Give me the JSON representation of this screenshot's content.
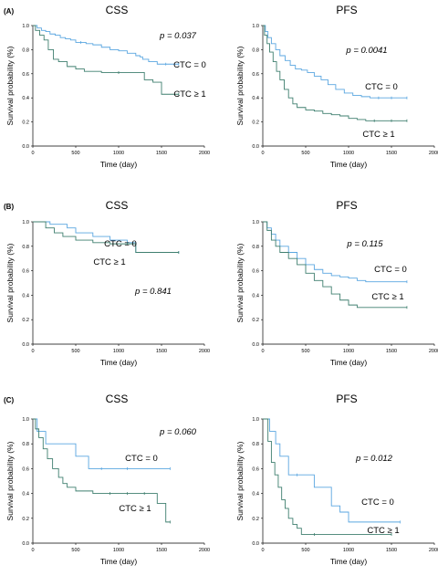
{
  "chart_data": [
    {
      "type": "line",
      "row_label": "(A)",
      "title": "CSS",
      "xlabel": "Time (day)",
      "ylabel": "Survival probability (%)",
      "xlim": [
        0,
        2000
      ],
      "ylim": [
        0,
        1
      ],
      "xticks": [
        "0",
        "500",
        "1000",
        "1500",
        "2000"
      ],
      "yticks": [
        "0.0",
        "0.2",
        "0.4",
        "0.6",
        "0.8",
        "1.0"
      ],
      "p_value": "p = 0.037",
      "series": [
        {
          "name": "CTC = 0",
          "color": "#5aa6e0",
          "x": [
            0,
            50,
            100,
            150,
            200,
            260,
            320,
            380,
            440,
            500,
            560,
            620,
            700,
            800,
            900,
            1000,
            1100,
            1200,
            1250,
            1280,
            1350,
            1450,
            1550,
            1700
          ],
          "y": [
            1.0,
            0.98,
            0.96,
            0.95,
            0.93,
            0.92,
            0.9,
            0.89,
            0.88,
            0.86,
            0.86,
            0.85,
            0.84,
            0.82,
            0.8,
            0.79,
            0.77,
            0.75,
            0.74,
            0.72,
            0.7,
            0.68,
            0.68,
            0.68
          ]
        },
        {
          "name": "CTC ≥ 1",
          "color": "#3f7f6f",
          "x": [
            0,
            30,
            80,
            130,
            180,
            240,
            300,
            400,
            500,
            600,
            800,
            1000,
            1300,
            1400,
            1500,
            1700
          ],
          "y": [
            1.0,
            0.96,
            0.92,
            0.88,
            0.8,
            0.72,
            0.7,
            0.66,
            0.64,
            0.62,
            0.61,
            0.61,
            0.55,
            0.53,
            0.43,
            0.43
          ]
        }
      ]
    },
    {
      "type": "line",
      "row_label": "",
      "title": "PFS",
      "xlabel": "Time (day)",
      "ylabel": "Survival probability (%)",
      "xlim": [
        0,
        2000
      ],
      "ylim": [
        0,
        1
      ],
      "xticks": [
        "0",
        "500",
        "1000",
        "1500",
        "2000"
      ],
      "yticks": [
        "0.0",
        "0.2",
        "0.4",
        "0.6",
        "0.8",
        "1.0"
      ],
      "p_value": "p = 0.0041",
      "series": [
        {
          "name": "CTC = 0",
          "color": "#5aa6e0",
          "x": [
            0,
            30,
            60,
            100,
            150,
            200,
            260,
            320,
            380,
            450,
            520,
            600,
            680,
            760,
            850,
            950,
            1050,
            1150,
            1250,
            1350,
            1500,
            1680
          ],
          "y": [
            1.0,
            0.95,
            0.9,
            0.85,
            0.8,
            0.75,
            0.71,
            0.67,
            0.64,
            0.63,
            0.61,
            0.58,
            0.55,
            0.51,
            0.47,
            0.44,
            0.42,
            0.41,
            0.4,
            0.4,
            0.4,
            0.4
          ]
        },
        {
          "name": "CTC ≥ 1",
          "color": "#3f7f6f",
          "x": [
            0,
            20,
            50,
            80,
            120,
            160,
            200,
            250,
            300,
            350,
            400,
            500,
            600,
            700,
            800,
            900,
            1000,
            1100,
            1200,
            1300,
            1500,
            1680
          ],
          "y": [
            1.0,
            0.92,
            0.85,
            0.78,
            0.7,
            0.62,
            0.55,
            0.47,
            0.4,
            0.35,
            0.32,
            0.3,
            0.29,
            0.27,
            0.26,
            0.25,
            0.23,
            0.22,
            0.21,
            0.21,
            0.21,
            0.21
          ]
        }
      ]
    },
    {
      "type": "line",
      "row_label": "(B)",
      "title": "CSS",
      "xlabel": "Time (day)",
      "ylabel": "Survival probability (%)",
      "xlim": [
        0,
        2000
      ],
      "ylim": [
        0,
        1
      ],
      "xticks": [
        "0",
        "500",
        "1000",
        "1500",
        "2000"
      ],
      "yticks": [
        "0.0",
        "0.2",
        "0.4",
        "0.6",
        "0.8",
        "1.0"
      ],
      "p_value": "p = 0.841",
      "series": [
        {
          "name": "CTC = 0",
          "color": "#5aa6e0",
          "x": [
            0,
            200,
            400,
            500,
            700,
            900,
            1100,
            1200,
            1700
          ],
          "y": [
            1.0,
            0.98,
            0.95,
            0.91,
            0.88,
            0.85,
            0.83,
            0.75,
            0.75
          ]
        },
        {
          "name": "CTC ≥ 1",
          "color": "#3f7f6f",
          "x": [
            0,
            150,
            250,
            350,
            500,
            700,
            900,
            1100,
            1200,
            1700
          ],
          "y": [
            1.0,
            0.95,
            0.91,
            0.88,
            0.85,
            0.83,
            0.82,
            0.82,
            0.75,
            0.75
          ]
        }
      ]
    },
    {
      "type": "line",
      "row_label": "",
      "title": "PFS",
      "xlabel": "Time (day)",
      "ylabel": "Survival probability (%)",
      "xlim": [
        0,
        2000
      ],
      "ylim": [
        0,
        1
      ],
      "xticks": [
        "0",
        "500",
        "1000",
        "1500",
        "2000"
      ],
      "yticks": [
        "0.0",
        "0.2",
        "0.4",
        "0.6",
        "0.8",
        "1.0"
      ],
      "p_value": "p = 0.115",
      "series": [
        {
          "name": "CTC = 0",
          "color": "#5aa6e0",
          "x": [
            0,
            50,
            100,
            150,
            200,
            300,
            400,
            500,
            600,
            700,
            800,
            900,
            1000,
            1100,
            1200,
            1680
          ],
          "y": [
            1.0,
            0.95,
            0.9,
            0.85,
            0.8,
            0.75,
            0.7,
            0.65,
            0.61,
            0.58,
            0.56,
            0.55,
            0.54,
            0.52,
            0.51,
            0.51
          ]
        },
        {
          "name": "CTC ≥ 1",
          "color": "#3f7f6f",
          "x": [
            0,
            50,
            100,
            150,
            200,
            300,
            400,
            500,
            600,
            700,
            800,
            900,
            1000,
            1100,
            1680
          ],
          "y": [
            1.0,
            0.93,
            0.85,
            0.8,
            0.75,
            0.7,
            0.65,
            0.58,
            0.52,
            0.47,
            0.41,
            0.36,
            0.32,
            0.3,
            0.3
          ]
        }
      ]
    },
    {
      "type": "line",
      "row_label": "(C)",
      "title": "CSS",
      "xlabel": "Time (day)",
      "ylabel": "Survival probability (%)",
      "xlim": [
        0,
        2000
      ],
      "ylim": [
        0,
        1
      ],
      "xticks": [
        "0",
        "500",
        "1000",
        "1500",
        "2000"
      ],
      "yticks": [
        "0.0",
        "0.2",
        "0.4",
        "0.6",
        "0.8",
        "1.0"
      ],
      "p_value": "p = 0.060",
      "series": [
        {
          "name": "CTC = 0",
          "color": "#5aa6e0",
          "x": [
            0,
            50,
            150,
            500,
            650,
            800,
            1100,
            1600
          ],
          "y": [
            1.0,
            0.9,
            0.8,
            0.7,
            0.6,
            0.6,
            0.6,
            0.6
          ]
        },
        {
          "name": "CTC ≥ 1",
          "color": "#3f7f6f",
          "x": [
            0,
            30,
            70,
            120,
            170,
            230,
            300,
            350,
            400,
            500,
            700,
            900,
            1100,
            1300,
            1450,
            1550,
            1600
          ],
          "y": [
            1.0,
            0.92,
            0.85,
            0.76,
            0.68,
            0.6,
            0.53,
            0.48,
            0.45,
            0.42,
            0.4,
            0.4,
            0.4,
            0.4,
            0.32,
            0.17,
            0.17
          ]
        }
      ]
    },
    {
      "type": "line",
      "row_label": "",
      "title": "PFS",
      "xlabel": "Time (day)",
      "ylabel": "Survival probability (%)",
      "xlim": [
        0,
        2000
      ],
      "ylim": [
        0,
        1
      ],
      "xticks": [
        "0",
        "500",
        "1000",
        "1500",
        "2000"
      ],
      "yticks": [
        "0.0",
        "0.2",
        "0.4",
        "0.6",
        "0.8",
        "1.0"
      ],
      "p_value": "p = 0.012",
      "series": [
        {
          "name": "CTC = 0",
          "color": "#5aa6e0",
          "x": [
            0,
            80,
            150,
            200,
            300,
            400,
            600,
            800,
            900,
            1000,
            1600
          ],
          "y": [
            1.0,
            0.9,
            0.8,
            0.7,
            0.55,
            0.55,
            0.45,
            0.3,
            0.25,
            0.17,
            0.17
          ]
        },
        {
          "name": "CTC ≥ 1",
          "color": "#3f7f6f",
          "x": [
            0,
            60,
            100,
            140,
            180,
            220,
            260,
            300,
            350,
            400,
            450,
            600,
            1500
          ],
          "y": [
            1.0,
            0.82,
            0.65,
            0.55,
            0.45,
            0.35,
            0.28,
            0.2,
            0.15,
            0.12,
            0.07,
            0.07,
            0.07
          ]
        }
      ]
    }
  ]
}
